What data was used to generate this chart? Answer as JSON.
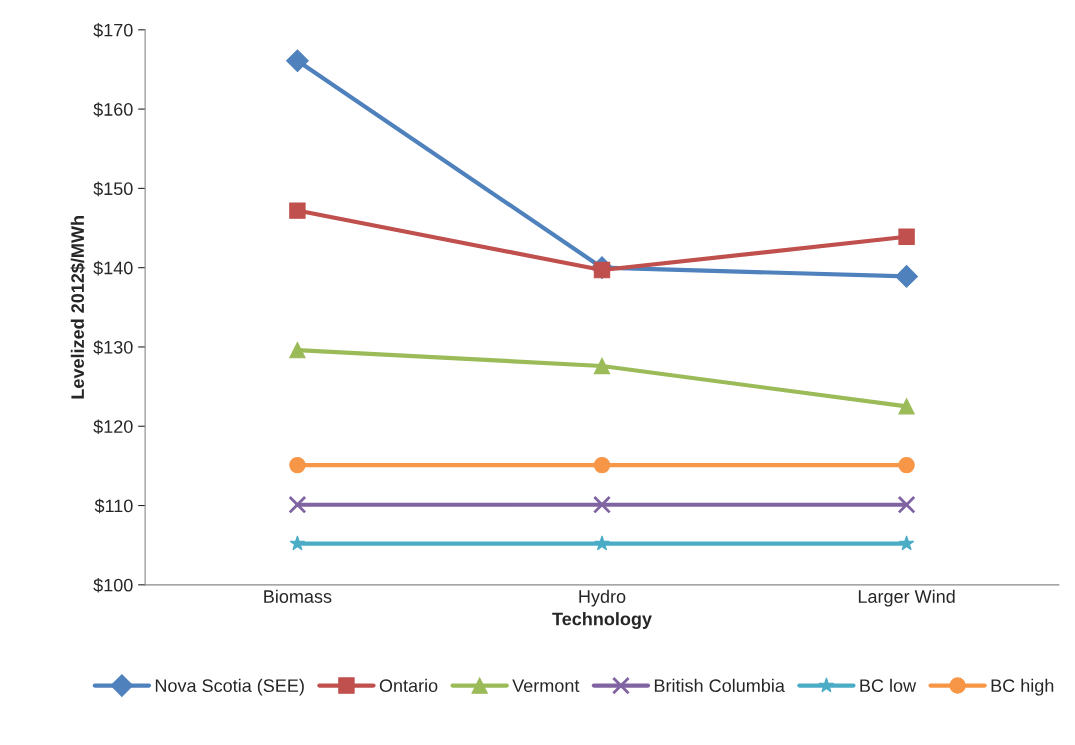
{
  "chart_data": {
    "type": "line",
    "xlabel": "Technology",
    "ylabel": "Levelized 2012$/MWh",
    "categories": [
      "Biomass",
      "Hydro",
      "Larger Wind"
    ],
    "series": [
      {
        "name": "Nova Scotia (SEE)",
        "color": "#4f81bd",
        "marker": "diamond",
        "values": [
          166.1,
          140.0,
          138.9
        ]
      },
      {
        "name": "Ontario",
        "color": "#c0504d",
        "marker": "square",
        "values": [
          147.2,
          139.7,
          143.9
        ]
      },
      {
        "name": "Vermont",
        "color": "#9bbb59",
        "marker": "triangle",
        "values": [
          129.6,
          127.6,
          122.5
        ]
      },
      {
        "name": "British Columbia",
        "color": "#8064a2",
        "marker": "cross",
        "values": [
          110.1,
          110.1,
          110.1
        ]
      },
      {
        "name": "BC low",
        "color": "#4bacc6",
        "marker": "star",
        "values": [
          105.2,
          105.2,
          105.2
        ]
      },
      {
        "name": "BC high",
        "color": "#f79646",
        "marker": "circle",
        "values": [
          115.1,
          115.1,
          115.1
        ]
      }
    ],
    "ylim": [
      100,
      170
    ],
    "yticks": [
      {
        "value": 100,
        "label": "$100"
      },
      {
        "value": 110,
        "label": "$110"
      },
      {
        "value": 120,
        "label": "$120"
      },
      {
        "value": 130,
        "label": "$130"
      },
      {
        "value": 140,
        "label": "$140"
      },
      {
        "value": 150,
        "label": "$150"
      },
      {
        "value": 160,
        "label": "$160"
      },
      {
        "value": 170,
        "label": "$170"
      }
    ],
    "grid": false,
    "legend": "bottom"
  }
}
